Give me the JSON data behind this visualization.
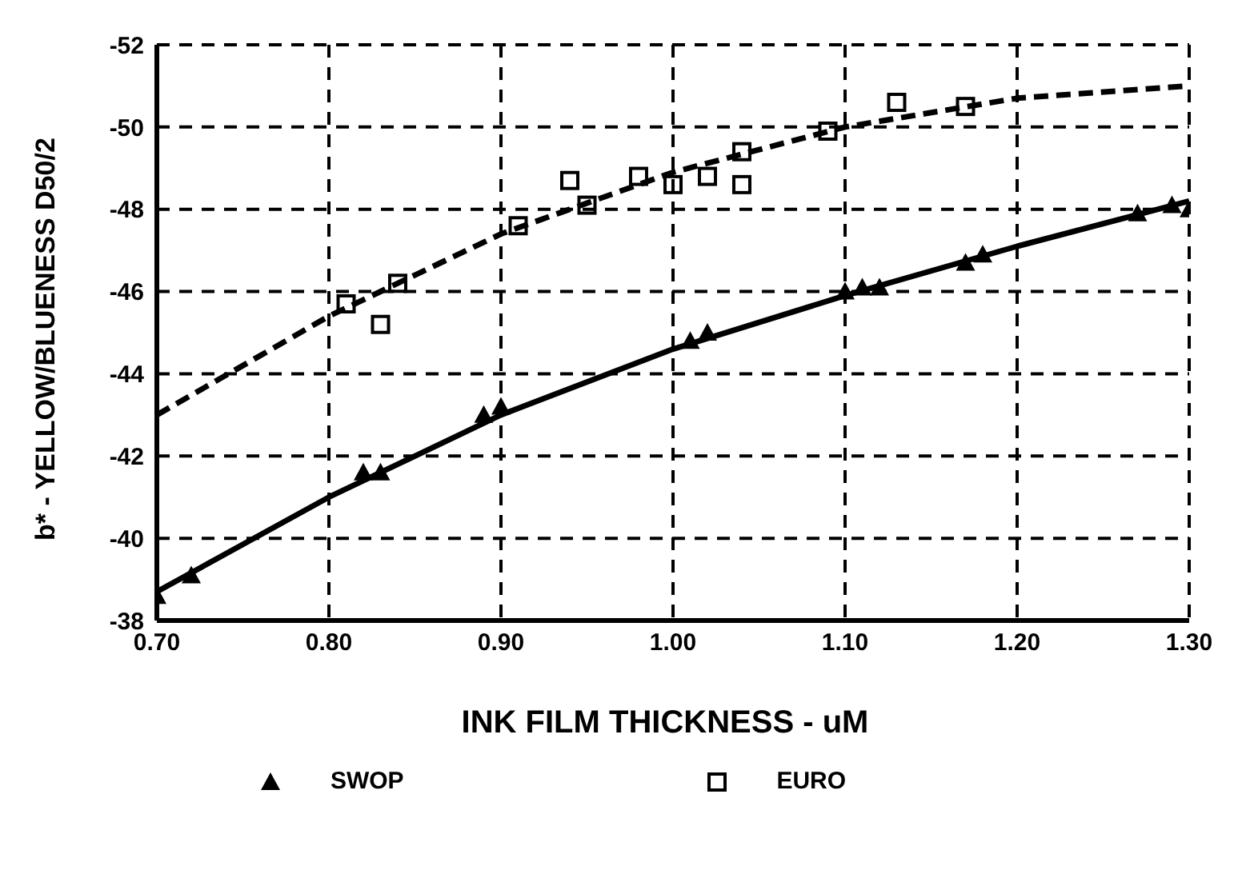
{
  "chart_data": {
    "type": "scatter",
    "xlabel": "INK FILM THICKNESS - uM",
    "ylabel": "b* - YELLOW/BLUENESS D50/2",
    "xlim": [
      0.7,
      1.3
    ],
    "xticks": [
      {
        "value": 0.7,
        "label": "0.70"
      },
      {
        "value": 0.8,
        "label": "0.80"
      },
      {
        "value": 0.9,
        "label": "0.90"
      },
      {
        "value": 1.0,
        "label": "1.00"
      },
      {
        "value": 1.1,
        "label": "1.10"
      },
      {
        "value": 1.2,
        "label": "1.20"
      },
      {
        "value": 1.3,
        "label": "1.30"
      }
    ],
    "ylim": [
      -38,
      -52
    ],
    "yticks": [
      -38,
      -40,
      -42,
      -44,
      -46,
      -48,
      -50,
      -52
    ],
    "grid": true,
    "legend": "bottom",
    "series": [
      {
        "name": "SWOP",
        "marker": "triangle",
        "color": "#000000",
        "x": [
          0.7,
          0.72,
          0.82,
          0.83,
          0.89,
          0.9,
          1.01,
          1.02,
          1.1,
          1.11,
          1.12,
          1.17,
          1.18,
          1.27,
          1.29,
          1.3
        ],
        "values": [
          -38.6,
          -39.1,
          -41.6,
          -41.6,
          -43.0,
          -43.2,
          -44.8,
          -45.0,
          -46.0,
          -46.1,
          -46.1,
          -46.7,
          -46.9,
          -47.9,
          -48.1,
          -48.0
        ]
      },
      {
        "name": "EURO",
        "marker": "square",
        "color": "#000000",
        "x": [
          0.81,
          0.83,
          0.84,
          0.91,
          0.94,
          0.95,
          0.98,
          1.0,
          1.02,
          1.04,
          1.04,
          1.09,
          1.13,
          1.17
        ],
        "values": [
          -45.7,
          -45.2,
          -46.2,
          -47.6,
          -48.7,
          -48.1,
          -48.8,
          -48.6,
          -48.8,
          -49.4,
          -48.6,
          -49.9,
          -50.6,
          -50.5
        ]
      },
      {
        "type": "line",
        "line_style": "solid",
        "marker": "none",
        "color": "#000000",
        "x": [
          0.7,
          0.8,
          0.9,
          1.0,
          1.1,
          1.2,
          1.3
        ],
        "values": [
          -38.7,
          -41.0,
          -43.0,
          -44.6,
          -45.9,
          -47.1,
          -48.2
        ]
      },
      {
        "type": "line",
        "line_style": "dashed",
        "marker": "none",
        "color": "#000000",
        "x": [
          0.7,
          0.8,
          0.9,
          1.0,
          1.1,
          1.2,
          1.3
        ],
        "values": [
          -43.0,
          -45.4,
          -47.4,
          -48.9,
          -50.0,
          -50.7,
          -51.0
        ]
      }
    ]
  }
}
